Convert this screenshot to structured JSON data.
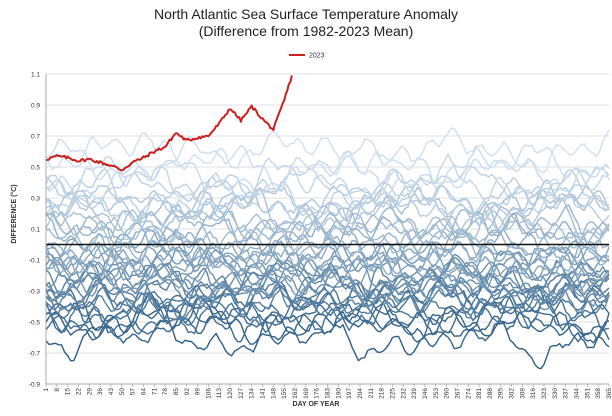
{
  "chart_data": {
    "type": "line",
    "title": "North Atlantic Sea Surface Temperature Anomaly",
    "subtitle": "(Difference from 1982-2023 Mean)",
    "xlabel": "DAY OF YEAR",
    "ylabel": "DIFFERENCE (°C)",
    "ylim": [
      -0.9,
      1.1
    ],
    "yticks": [
      -0.9,
      -0.7,
      -0.5,
      -0.3,
      -0.1,
      0.1,
      0.3,
      0.5,
      0.7,
      0.9,
      1.1
    ],
    "ytick_labels": [
      "-0.9",
      "-0.7",
      "-0.5",
      "-0.3",
      "-0.1",
      "0.1",
      "0.3",
      "0.5",
      "0.7",
      "0.9",
      "1.1"
    ],
    "xlim": [
      1,
      365
    ],
    "xticks": [
      1,
      8,
      15,
      22,
      29,
      36,
      43,
      50,
      57,
      64,
      71,
      78,
      85,
      92,
      99,
      106,
      113,
      120,
      127,
      134,
      141,
      148,
      155,
      162,
      169,
      176,
      183,
      190,
      197,
      204,
      211,
      218,
      225,
      232,
      239,
      246,
      253,
      260,
      267,
      274,
      281,
      288,
      295,
      302,
      309,
      316,
      323,
      330,
      337,
      344,
      351,
      358,
      365
    ],
    "grid": true,
    "zero_line": 0,
    "legend": {
      "position": "top-center",
      "entries": [
        "2023"
      ]
    },
    "highlight_series": {
      "name": "2023",
      "color": "#cc1f1f",
      "x": [
        1,
        8,
        15,
        22,
        29,
        36,
        43,
        50,
        57,
        64,
        71,
        78,
        85,
        92,
        99,
        106,
        113,
        120,
        127,
        134,
        141,
        148,
        155,
        160
      ],
      "values": [
        0.55,
        0.57,
        0.56,
        0.54,
        0.55,
        0.53,
        0.51,
        0.48,
        0.53,
        0.56,
        0.6,
        0.63,
        0.72,
        0.67,
        0.69,
        0.7,
        0.78,
        0.88,
        0.8,
        0.89,
        0.81,
        0.74,
        0.93,
        1.09
      ]
    },
    "background_series": {
      "count": 41,
      "years": "1982-2022",
      "color_range": [
        "#2e5f88",
        "#cfe0f0"
      ],
      "series_means": [
        -0.58,
        -0.55,
        -0.5,
        -0.47,
        -0.45,
        -0.42,
        -0.4,
        -0.38,
        -0.35,
        -0.33,
        -0.31,
        -0.3,
        -0.28,
        -0.26,
        -0.24,
        -0.22,
        -0.2,
        -0.18,
        -0.16,
        -0.14,
        -0.12,
        -0.1,
        -0.07,
        -0.04,
        -0.01,
        0.02,
        0.05,
        0.08,
        0.11,
        0.14,
        0.17,
        0.2,
        0.23,
        0.26,
        0.29,
        0.32,
        0.36,
        0.4,
        0.45,
        0.52,
        0.6
      ]
    }
  }
}
